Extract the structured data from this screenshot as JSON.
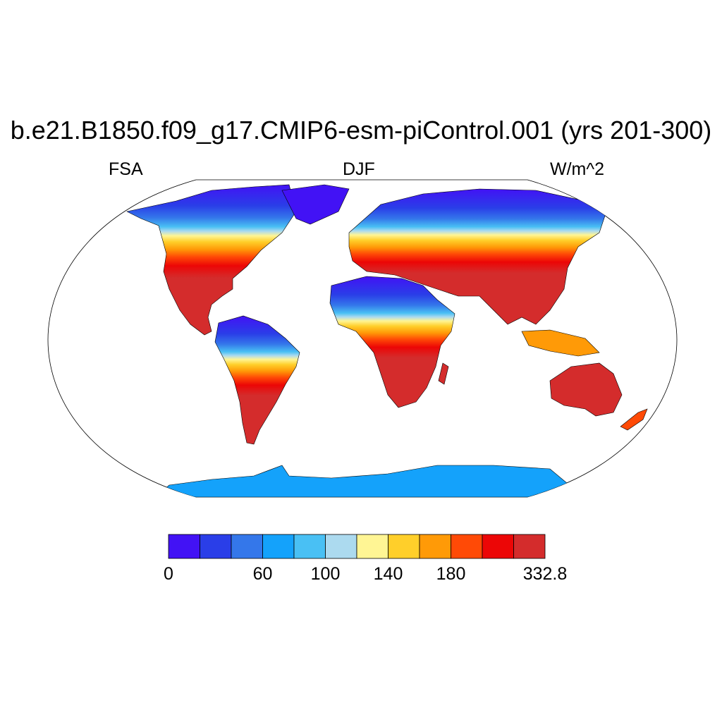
{
  "title": "b.e21.B1850.f09_g17.CMIP6-esm-piControl.001 (yrs 201-300)",
  "variable": "FSA",
  "season": "DJF",
  "units": "W/m^2",
  "projection": "Robinson",
  "colorbar": {
    "colors": [
      "#4212f5",
      "#2a3ee8",
      "#3477ea",
      "#14a2fb",
      "#49c0f4",
      "#acdaef",
      "#fff594",
      "#ffcf2a",
      "#ff9a07",
      "#ff4a06",
      "#ec0606",
      "#d42c2c"
    ],
    "tick_labels": [
      "0",
      "60",
      "100",
      "140",
      "180",
      "332.8"
    ]
  }
}
